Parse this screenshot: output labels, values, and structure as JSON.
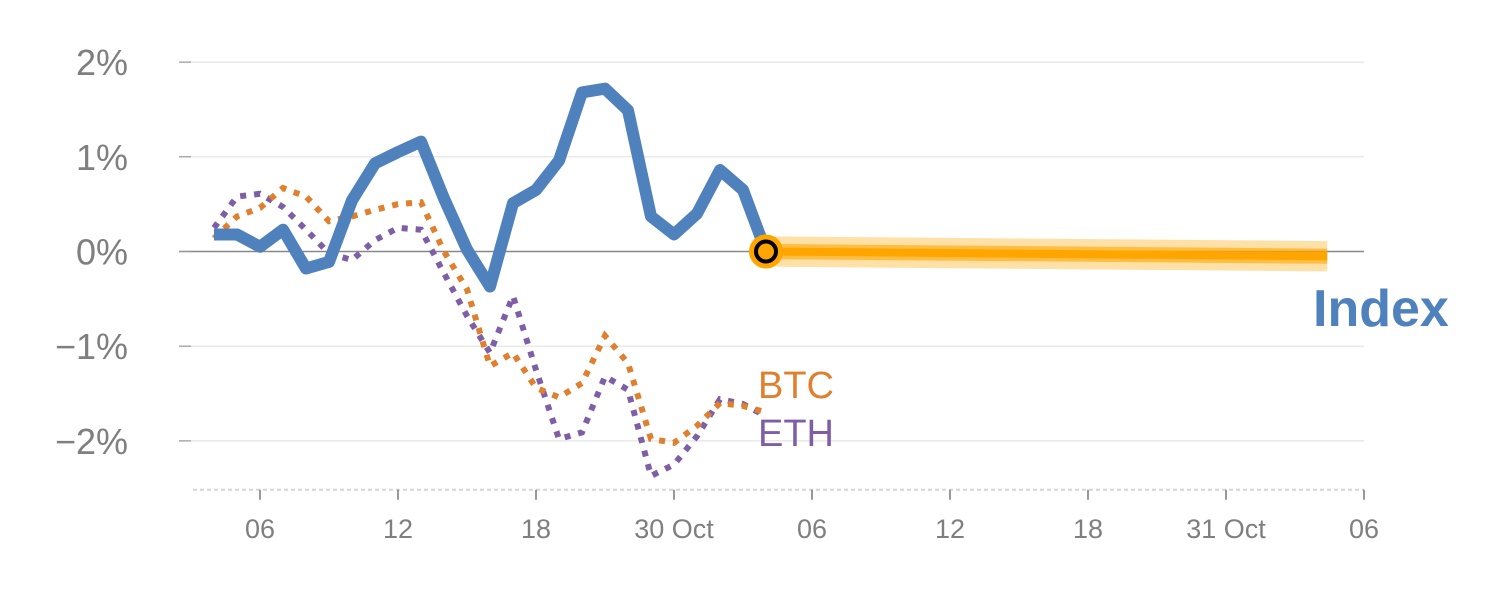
{
  "chart_data": {
    "type": "line",
    "title": "",
    "xlabel": "",
    "ylabel": "",
    "x_unit": "hours since 29 Oct 00:00",
    "xlim": [
      3,
      54
    ],
    "ylim": [
      -2.5,
      2.2
    ],
    "grid": true,
    "y_ticks": [
      {
        "value": 2,
        "label": "2%"
      },
      {
        "value": 1,
        "label": "1%"
      },
      {
        "value": 0,
        "label": "0%"
      },
      {
        "value": -1,
        "label": "−1%"
      },
      {
        "value": -2,
        "label": "−2%"
      }
    ],
    "x_ticks": [
      {
        "value": 6,
        "label": "06"
      },
      {
        "value": 12,
        "label": "12"
      },
      {
        "value": 18,
        "label": "18"
      },
      {
        "value": 24,
        "label": "30 Oct"
      },
      {
        "value": 30,
        "label": "06"
      },
      {
        "value": 36,
        "label": "12"
      },
      {
        "value": 42,
        "label": "18"
      },
      {
        "value": 48,
        "label": "31 Oct"
      },
      {
        "value": 54,
        "label": "06"
      }
    ],
    "x": [
      4,
      5,
      6,
      7,
      8,
      9,
      10,
      11,
      12,
      13,
      14,
      15,
      16,
      17,
      18,
      19,
      20,
      21,
      22,
      23,
      24,
      25,
      26,
      27,
      28
    ],
    "series": [
      {
        "name": "Index",
        "color": "#4f81bd",
        "style": "solid",
        "values": [
          0.18,
          0.18,
          0.05,
          0.23,
          -0.18,
          -0.11,
          0.54,
          0.93,
          1.05,
          1.16,
          0.56,
          0.02,
          -0.37,
          0.51,
          0.65,
          0.96,
          1.68,
          1.72,
          1.49,
          0.37,
          0.18,
          0.4,
          0.86,
          0.65,
          0.0
        ]
      },
      {
        "name": "BTC",
        "color": "#e07f2e",
        "style": "dotted",
        "values": [
          0.14,
          0.37,
          0.46,
          0.67,
          0.58,
          0.32,
          0.37,
          0.44,
          0.5,
          0.52,
          0.0,
          -0.4,
          -1.21,
          -1.07,
          -1.44,
          -1.54,
          -1.39,
          -0.89,
          -1.18,
          -1.98,
          -2.02,
          -1.84,
          -1.6,
          -1.63,
          -1.7
        ]
      },
      {
        "name": "ETH",
        "color": "#7e5fa6",
        "style": "dotted",
        "values": [
          0.25,
          0.58,
          0.61,
          0.47,
          0.23,
          -0.02,
          -0.09,
          0.12,
          0.25,
          0.23,
          -0.23,
          -0.68,
          -1.07,
          -0.47,
          -1.25,
          -1.98,
          -1.91,
          -1.32,
          -1.46,
          -2.37,
          -2.25,
          -1.95,
          -1.56,
          -1.61,
          -1.74
        ]
      }
    ],
    "forecast": {
      "color": "#ffa500",
      "x": [
        28,
        52.4
      ],
      "values": [
        0.0,
        -0.05
      ],
      "band": [
        0.08,
        0.16
      ]
    },
    "labels": {
      "index": "Index",
      "btc": "BTC",
      "eth": "ETH"
    }
  }
}
